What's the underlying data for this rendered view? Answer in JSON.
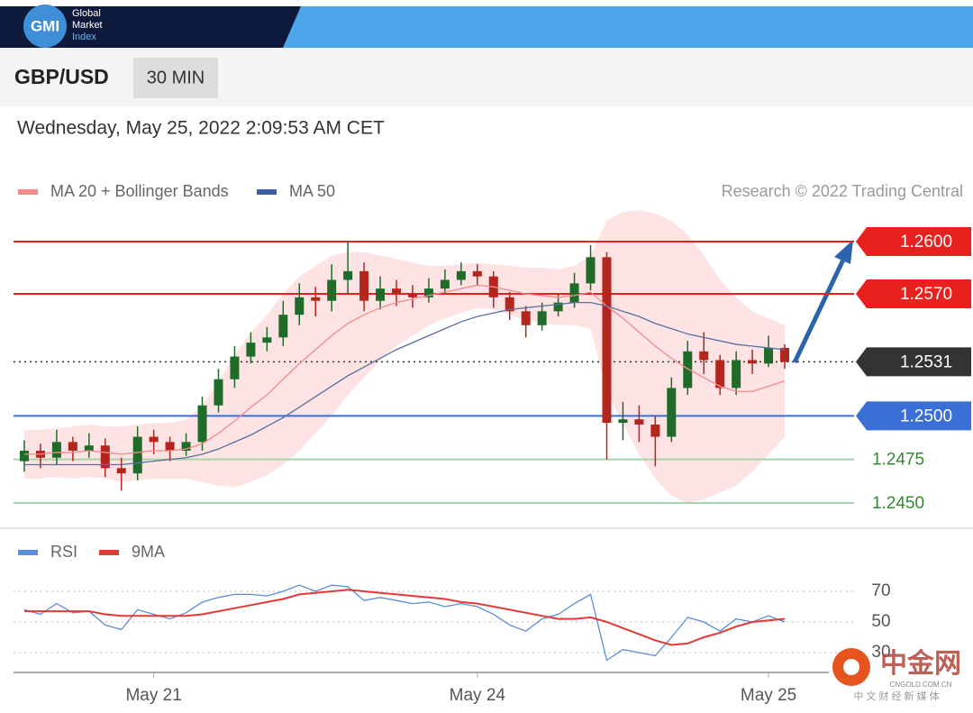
{
  "header": {
    "logo": "GMI",
    "brand": [
      "Global",
      "Market",
      "Index"
    ],
    "instrument": "GBP/USD",
    "timeframe": "30 MIN",
    "timestamp": "Wednesday, May 25, 2022 2:09:53 AM CET"
  },
  "watermark": {
    "name": "中金网",
    "url": "CNGOLD.COM.CN",
    "tagline": "中 文 财 经 新 媒 体"
  },
  "chart_data": [
    {
      "type": "candlestick",
      "credit": "Research © 2022 Trading Central",
      "xlim": [
        -0.5,
        47.5
      ],
      "ylim": [
        1.2439,
        1.262
      ],
      "up_color": "#1e6b2a",
      "down_color": "#b3261e",
      "open": [
        1.2474,
        1.248,
        1.2476,
        1.2485,
        1.248,
        1.2483,
        1.247,
        1.2467,
        1.2488,
        1.2485,
        1.248,
        1.2485,
        1.2506,
        1.2521,
        1.2534,
        1.2542,
        1.2545,
        1.2558,
        1.2568,
        1.2566,
        1.2578,
        1.2583,
        1.2566,
        1.2573,
        1.257,
        1.2568,
        1.2573,
        1.2578,
        1.2583,
        1.258,
        1.2568,
        1.256,
        1.2552,
        1.256,
        1.2565,
        1.2576,
        1.2591,
        1.2496,
        1.2498,
        1.2495,
        1.2488,
        1.2516,
        1.2537,
        1.2532,
        1.2516,
        1.2532,
        1.253,
        1.2539
      ],
      "high": [
        1.2486,
        1.2484,
        1.2492,
        1.2488,
        1.249,
        1.2487,
        1.2476,
        1.2494,
        1.2492,
        1.2488,
        1.249,
        1.2511,
        1.2527,
        1.254,
        1.2548,
        1.2551,
        1.2566,
        1.2576,
        1.2574,
        1.2587,
        1.26,
        1.2588,
        1.258,
        1.2578,
        1.2575,
        1.2579,
        1.2584,
        1.2588,
        1.2587,
        1.2583,
        1.2571,
        1.2563,
        1.2565,
        1.257,
        1.2582,
        1.2598,
        1.2594,
        1.2508,
        1.2506,
        1.25,
        1.2522,
        1.2543,
        1.2548,
        1.2535,
        1.2537,
        1.2538,
        1.2546,
        1.2541
      ],
      "low": [
        1.2468,
        1.247,
        1.2472,
        1.2474,
        1.2476,
        1.2465,
        1.2457,
        1.2463,
        1.2478,
        1.2474,
        1.2477,
        1.248,
        1.2502,
        1.2516,
        1.253,
        1.2537,
        1.254,
        1.2552,
        1.2557,
        1.256,
        1.257,
        1.256,
        1.2561,
        1.2563,
        1.2562,
        1.2565,
        1.257,
        1.2575,
        1.2575,
        1.2562,
        1.2555,
        1.2545,
        1.2549,
        1.2557,
        1.2562,
        1.2572,
        1.2475,
        1.2486,
        1.2485,
        1.2471,
        1.2485,
        1.2512,
        1.2524,
        1.2512,
        1.2512,
        1.2524,
        1.2528,
        1.2527
      ],
      "close": [
        1.248,
        1.2476,
        1.2485,
        1.248,
        1.2483,
        1.247,
        1.2467,
        1.2488,
        1.2485,
        1.248,
        1.2485,
        1.2506,
        1.2521,
        1.2534,
        1.2542,
        1.2545,
        1.2558,
        1.2568,
        1.2566,
        1.2578,
        1.2583,
        1.2566,
        1.2573,
        1.257,
        1.2568,
        1.2573,
        1.2578,
        1.2583,
        1.258,
        1.2568,
        1.256,
        1.2552,
        1.256,
        1.2565,
        1.2576,
        1.2591,
        1.2496,
        1.2498,
        1.2495,
        1.2488,
        1.2516,
        1.2537,
        1.2532,
        1.2516,
        1.2532,
        1.253,
        1.2539,
        1.2531
      ],
      "series": [
        {
          "name": "MA 20 + Bollinger Bands",
          "color": "#f28b8b",
          "band_color": "#fde3e3",
          "values": [
            1.2478,
            1.2478,
            1.2479,
            1.2479,
            1.248,
            1.2479,
            1.2478,
            1.2479,
            1.248,
            1.248,
            1.2481,
            1.2484,
            1.249,
            1.2497,
            1.2505,
            1.2512,
            1.2521,
            1.253,
            1.2538,
            1.2546,
            1.2553,
            1.2558,
            1.2562,
            1.2565,
            1.2567,
            1.2569,
            1.2571,
            1.2573,
            1.2575,
            1.2574,
            1.2572,
            1.257,
            1.2569,
            1.2568,
            1.2569,
            1.2571,
            1.2563,
            1.2556,
            1.2548,
            1.254,
            1.2533,
            1.2527,
            1.2522,
            1.2517,
            1.2514,
            1.2514,
            1.2517,
            1.252
          ],
          "upper": [
            1.2492,
            1.2492,
            1.2493,
            1.2494,
            1.2495,
            1.2494,
            1.2494,
            1.2495,
            1.2496,
            1.2496,
            1.2498,
            1.2506,
            1.252,
            1.2535,
            1.2548,
            1.2558,
            1.257,
            1.258,
            1.2586,
            1.2592,
            1.2594,
            1.2594,
            1.2592,
            1.259,
            1.2588,
            1.2586,
            1.2586,
            1.2587,
            1.2588,
            1.2587,
            1.2586,
            1.2585,
            1.2585,
            1.2584,
            1.2586,
            1.2592,
            1.2612,
            1.2617,
            1.2618,
            1.2616,
            1.2612,
            1.2604,
            1.2592,
            1.2578,
            1.2568,
            1.256,
            1.2556,
            1.2552
          ],
          "lower": [
            1.2464,
            1.2464,
            1.2465,
            1.2464,
            1.2465,
            1.2464,
            1.2462,
            1.2463,
            1.2464,
            1.2464,
            1.2464,
            1.2462,
            1.246,
            1.2459,
            1.2462,
            1.2466,
            1.2472,
            1.248,
            1.249,
            1.25,
            1.2512,
            1.2522,
            1.2532,
            1.254,
            1.2546,
            1.2552,
            1.2556,
            1.2559,
            1.2562,
            1.2561,
            1.2558,
            1.2555,
            1.2553,
            1.2552,
            1.2552,
            1.255,
            1.2514,
            1.2495,
            1.2478,
            1.2464,
            1.2454,
            1.245,
            1.2452,
            1.2456,
            1.246,
            1.2468,
            1.2478,
            1.2488
          ]
        },
        {
          "name": "MA 50",
          "color": "#5a6f9e",
          "legend_color": "#3b5fa0",
          "values": [
            1.2472,
            1.2472,
            1.2472,
            1.2472,
            1.2472,
            1.2472,
            1.2472,
            1.2473,
            1.2474,
            1.2475,
            1.2476,
            1.2478,
            1.2481,
            1.2485,
            1.2489,
            1.2494,
            1.2499,
            1.2505,
            1.2511,
            1.2517,
            1.2523,
            1.2528,
            1.2533,
            1.2538,
            1.2542,
            1.2546,
            1.255,
            1.2554,
            1.2557,
            1.2559,
            1.2561,
            1.2562,
            1.2563,
            1.2564,
            1.2565,
            1.2565,
            1.2563,
            1.256,
            1.2557,
            1.2553,
            1.255,
            1.2547,
            1.2545,
            1.2543,
            1.2541,
            1.254,
            1.2539,
            1.2538
          ]
        }
      ],
      "levels": [
        {
          "value": 1.26,
          "label": "1.2600",
          "color": "#e8201e",
          "style": "box",
          "line": "solid"
        },
        {
          "value": 1.257,
          "label": "1.2570",
          "color": "#e8201e",
          "style": "box",
          "line": "solid"
        },
        {
          "value": 1.2531,
          "label": "1.2531",
          "color": "#333333",
          "style": "box",
          "line": "dotted"
        },
        {
          "value": 1.25,
          "label": "1.2500",
          "color": "#3a6fd8",
          "style": "box",
          "line": "solid"
        },
        {
          "value": 1.2475,
          "label": "1.2475",
          "color": "#a9d3a9",
          "text_color": "#2e8b2e",
          "style": "text",
          "line": "solid"
        },
        {
          "value": 1.245,
          "label": "1.2450",
          "color": "#a9d3a9",
          "text_color": "#2e8b2e",
          "style": "text",
          "line": "solid"
        }
      ]
    },
    {
      "type": "line",
      "xlim": [
        -0.5,
        47.5
      ],
      "ylim": [
        18,
        85
      ],
      "yticks": [
        30,
        50,
        70
      ],
      "grid": true,
      "xticks": [
        {
          "value": 8,
          "label": "May 21"
        },
        {
          "value": 28,
          "label": "May 24"
        },
        {
          "value": 46,
          "label": "May 25"
        }
      ],
      "series": [
        {
          "name": "RSI",
          "color": "#5b8dd9",
          "values": [
            58,
            55,
            62,
            56,
            57,
            48,
            45,
            58,
            55,
            52,
            56,
            63,
            66,
            68,
            68,
            67,
            70,
            74,
            70,
            74,
            73,
            64,
            66,
            64,
            62,
            63,
            60,
            62,
            60,
            55,
            48,
            44,
            52,
            55,
            62,
            68,
            25,
            32,
            30,
            28,
            40,
            53,
            50,
            44,
            52,
            50,
            54,
            50
          ]
        },
        {
          "name": "9MA",
          "color": "#e53935",
          "values": [
            57,
            57,
            57,
            57,
            57,
            55,
            54,
            54,
            54,
            54,
            54,
            55,
            57,
            59,
            61,
            63,
            65,
            68,
            69,
            70,
            71,
            70,
            69,
            68,
            67,
            66,
            65,
            63,
            62,
            60,
            58,
            56,
            54,
            52,
            52,
            53,
            50,
            46,
            42,
            38,
            35,
            36,
            40,
            43,
            47,
            50,
            51,
            52
          ]
        }
      ]
    }
  ]
}
